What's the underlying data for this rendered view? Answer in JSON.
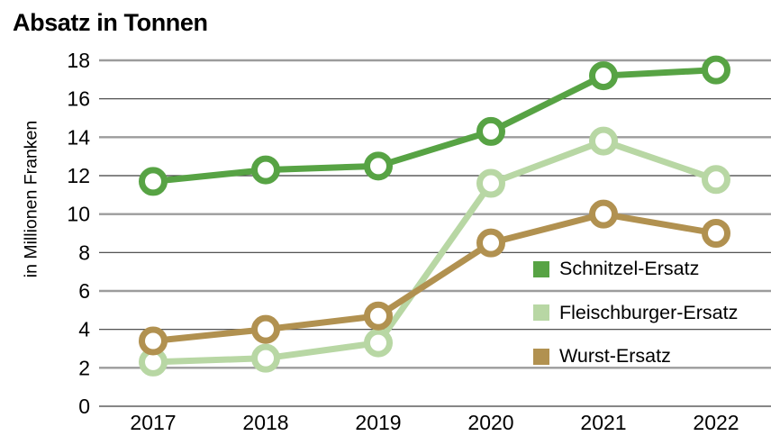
{
  "title": "Absatz in Tonnen",
  "y_axis_label": "in Millionen Franken",
  "colors": {
    "grid_major": "#9c9c9c",
    "grid_minor": "#3d3d3d",
    "background": "#ffffff",
    "text": "#000000"
  },
  "chart_data": {
    "type": "line",
    "title": "Absatz in Tonnen",
    "xlabel": "",
    "ylabel": "in Millionen Franken",
    "categories": [
      "2017",
      "2018",
      "2019",
      "2020",
      "2021",
      "2022"
    ],
    "series": [
      {
        "name": "Schnitzel-Ersatz",
        "color": "#57a344",
        "values": [
          11.7,
          12.3,
          12.5,
          14.3,
          17.2,
          17.5
        ]
      },
      {
        "name": "Fleischburger-Ersatz",
        "color": "#b8d7a4",
        "values": [
          2.3,
          2.5,
          3.3,
          11.6,
          13.8,
          11.8
        ]
      },
      {
        "name": "Wurst-Ersatz",
        "color": "#b19150",
        "values": [
          3.4,
          4.0,
          4.7,
          8.5,
          10.0,
          9.0
        ]
      }
    ],
    "draw_order": [
      1,
      2,
      0
    ],
    "ylim": [
      0,
      18
    ],
    "yticks": [
      0,
      2,
      4,
      6,
      8,
      10,
      12,
      14,
      16,
      18
    ],
    "grid": "horizontal",
    "legend_position": "inside-right",
    "marker": "open-circle"
  }
}
